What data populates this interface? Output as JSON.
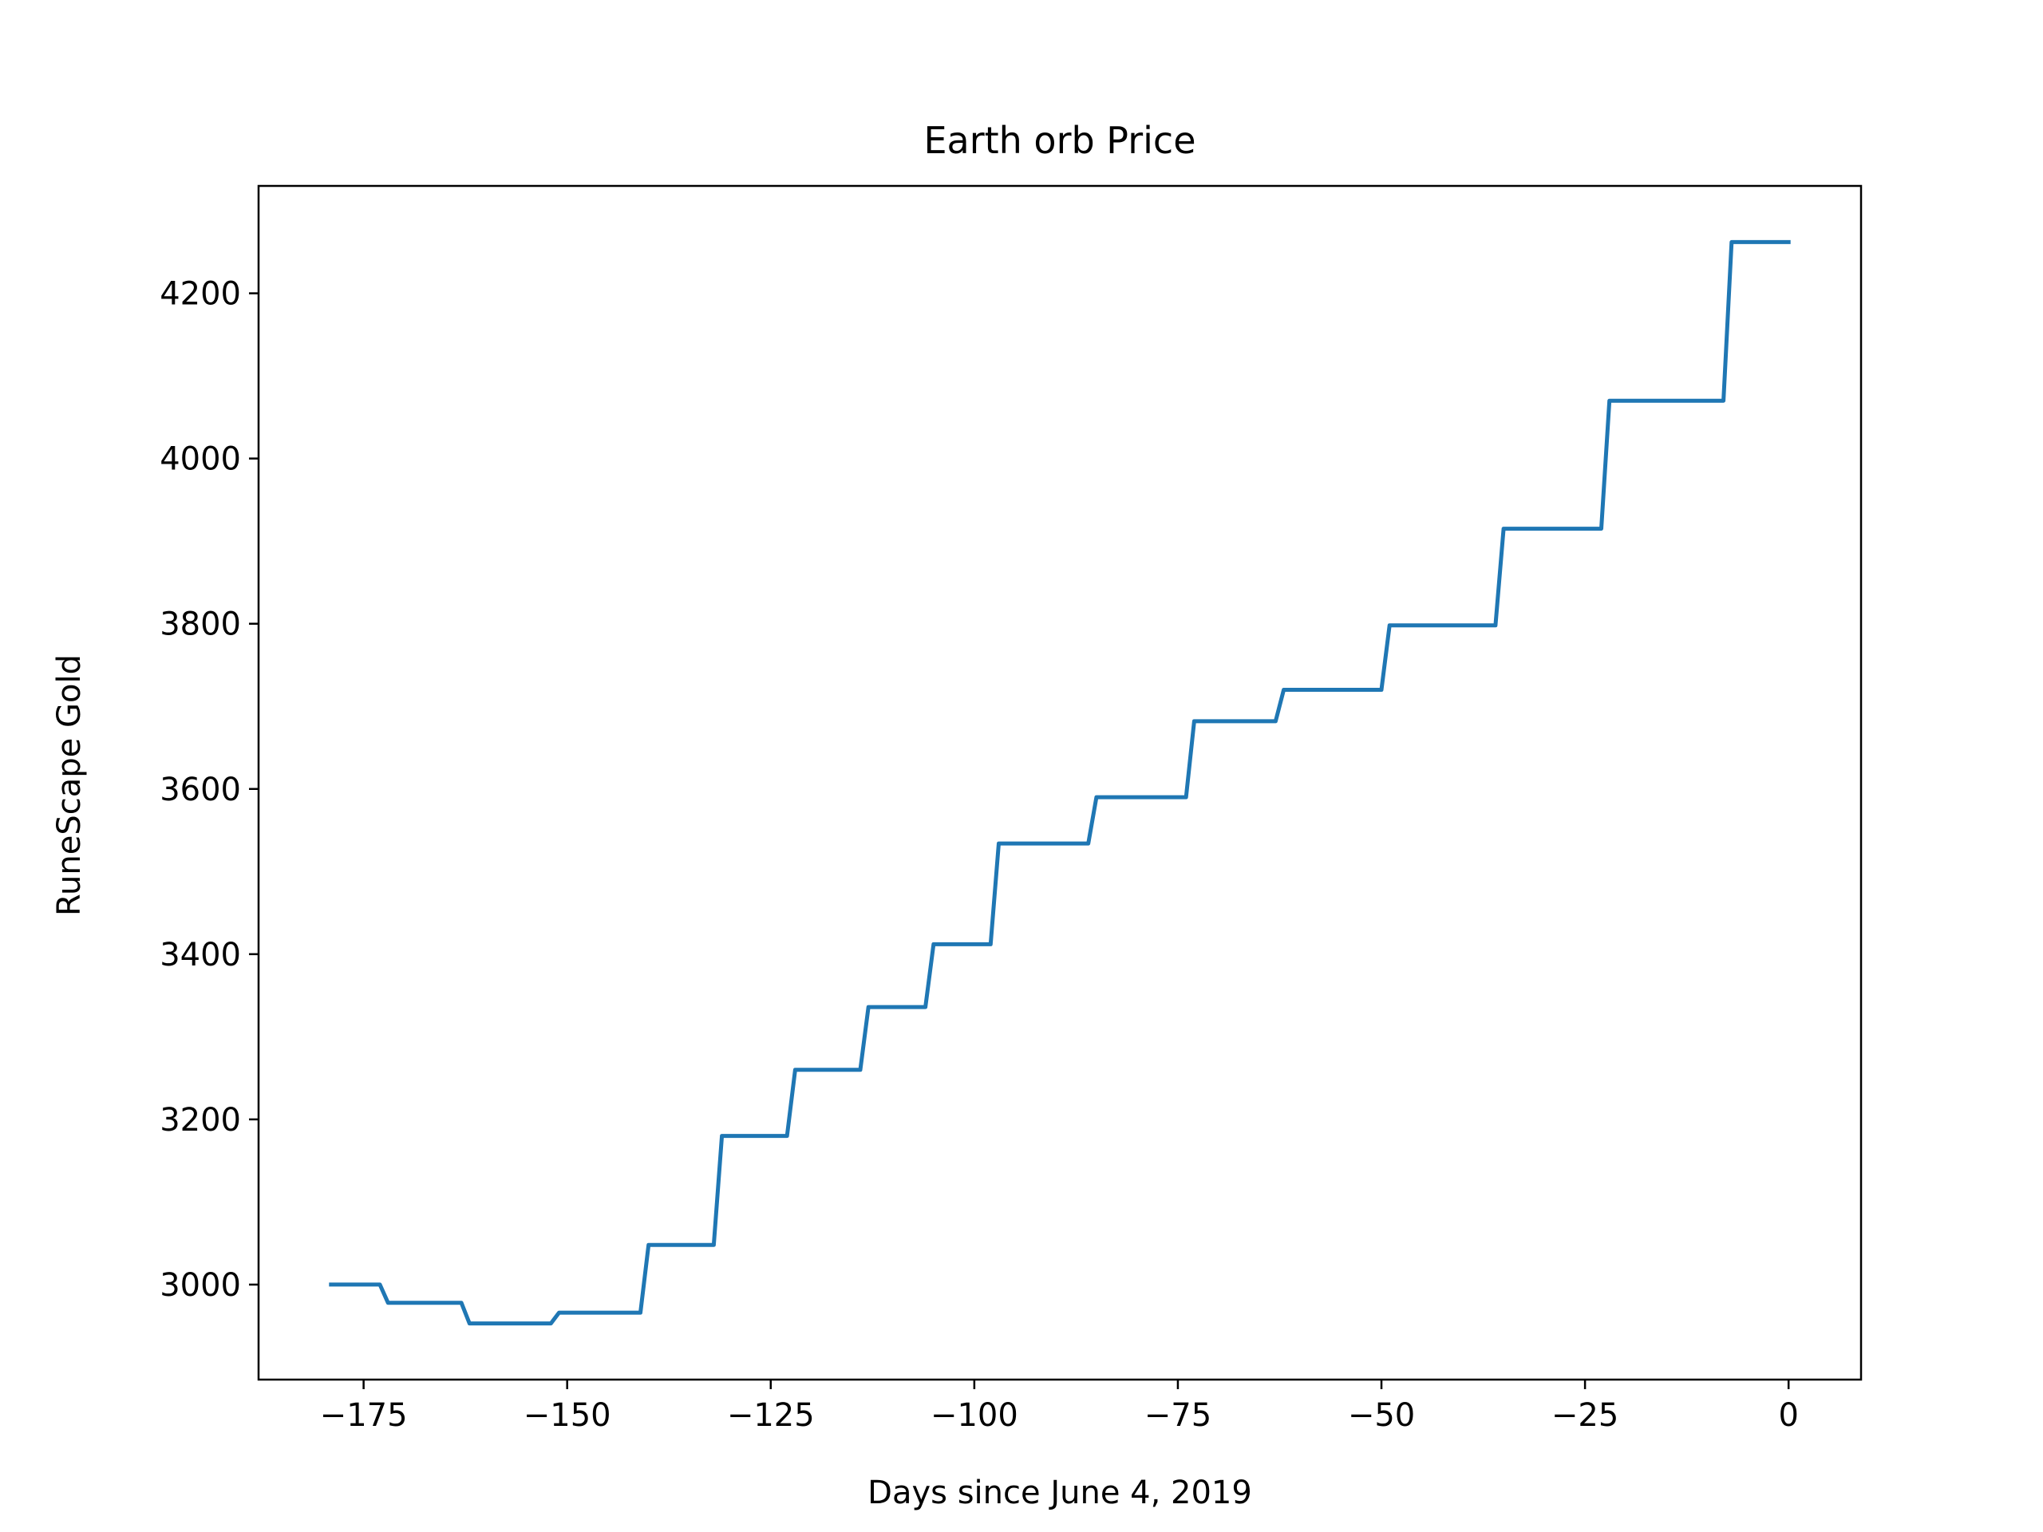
{
  "chart_data": {
    "type": "line",
    "title": "Earth orb Price",
    "xlabel": "Days since June 4, 2019",
    "ylabel": "RuneScape Gold",
    "xlim": [
      -187.9,
      8.9
    ],
    "ylim": [
      2885,
      4330
    ],
    "xticks": [
      -175,
      -150,
      -125,
      -100,
      -75,
      -50,
      -25,
      0
    ],
    "xtick_labels": [
      "−175",
      "−150",
      "−125",
      "−100",
      "−75",
      "−50",
      "−25",
      "0"
    ],
    "yticks": [
      3000,
      3200,
      3400,
      3600,
      3800,
      4000,
      4200
    ],
    "ytick_labels": [
      "3000",
      "3200",
      "3400",
      "3600",
      "3800",
      "4000",
      "4200"
    ],
    "grid": false,
    "series": [
      {
        "color": "#1f77b4",
        "points": [
          [
            -179,
            3000
          ],
          [
            -173,
            3000
          ],
          [
            -172,
            2978
          ],
          [
            -163,
            2978
          ],
          [
            -162,
            2953
          ],
          [
            -152,
            2953
          ],
          [
            -151,
            2966
          ],
          [
            -141,
            2966
          ],
          [
            -140,
            3048
          ],
          [
            -132,
            3048
          ],
          [
            -131,
            3180
          ],
          [
            -123,
            3180
          ],
          [
            -122,
            3260
          ],
          [
            -114,
            3260
          ],
          [
            -113,
            3336
          ],
          [
            -106,
            3336
          ],
          [
            -105,
            3412
          ],
          [
            -98,
            3412
          ],
          [
            -97,
            3534
          ],
          [
            -86,
            3534
          ],
          [
            -85,
            3590
          ],
          [
            -74,
            3590
          ],
          [
            -73,
            3682
          ],
          [
            -63,
            3682
          ],
          [
            -62,
            3720
          ],
          [
            -50,
            3720
          ],
          [
            -49,
            3798
          ],
          [
            -36,
            3798
          ],
          [
            -35,
            3915
          ],
          [
            -23,
            3915
          ],
          [
            -22,
            4070
          ],
          [
            -8,
            4070
          ],
          [
            -7,
            4262
          ],
          [
            0,
            4262
          ]
        ]
      }
    ]
  }
}
